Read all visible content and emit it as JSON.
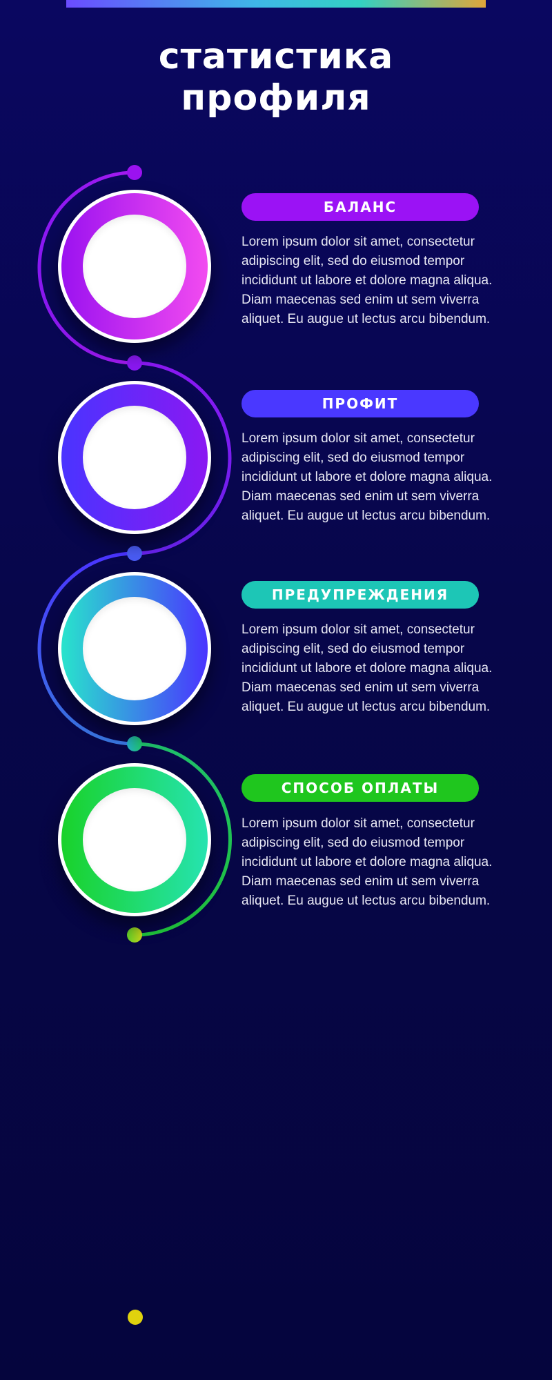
{
  "header": {
    "title_line1": "статистика",
    "title_line2": "профиля"
  },
  "colors": {
    "background": "#07064a",
    "stage1": "#9b12f5",
    "stage2": "#4a38ff",
    "stage3": "#1dc6b6",
    "stage4": "#1fc61e",
    "end_dot": "#e0d20e"
  },
  "stages": [
    {
      "label": "БАЛАНС",
      "text": "Lorem ipsum dolor sit amet, consectetur adipiscing elit, sed do eiusmod tempor incididunt ut labore et dolore magna aliqua. Diam maecenas sed enim ut sem viverra aliquet. Eu augue ut lectus arcu bibendum."
    },
    {
      "label": "ПРОФИТ",
      "text": "Lorem ipsum dolor sit amet, consectetur adipiscing elit, sed do eiusmod tempor incididunt ut labore et dolore magna aliqua. Diam maecenas sed enim ut sem viverra aliquet. Eu augue ut lectus arcu bibendum."
    },
    {
      "label": "ПРЕДУПРЕЖДЕНИЯ",
      "text": "Lorem ipsum dolor sit amet, consectetur adipiscing elit, sed do eiusmod tempor incididunt ut labore et dolore magna aliqua. Diam maecenas sed enim ut sem viverra aliquet. Eu augue ut lectus arcu bibendum."
    },
    {
      "label": "СПОСОБ ОПЛАТЫ",
      "text": "Lorem ipsum dolor sit amet, consectetur adipiscing elit, sed do eiusmod tempor incididunt ut labore et dolore magna aliqua. Diam maecenas sed enim ut sem viverra aliquet. Eu augue ut lectus arcu bibendum."
    }
  ]
}
